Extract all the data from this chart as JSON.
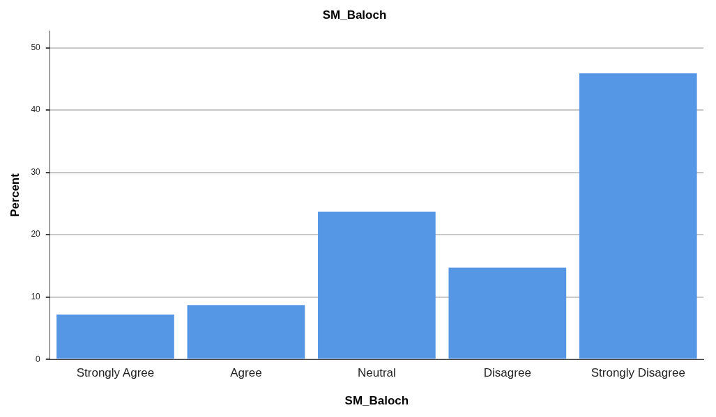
{
  "chart_data": {
    "type": "bar",
    "title": "SM_Baloch",
    "xlabel": "SM_Baloch",
    "ylabel": "Percent",
    "categories": [
      "Strongly Agree",
      "Agree",
      "Neutral",
      "Disagree",
      "Strongly Disagree"
    ],
    "values": [
      7.2,
      8.7,
      23.7,
      14.7,
      45.9
    ],
    "color": "#5596e5",
    "ylim": [
      0,
      52.7
    ],
    "yticks": [
      0,
      10,
      20,
      30,
      40,
      50
    ],
    "grid": "y",
    "legend": false
  }
}
